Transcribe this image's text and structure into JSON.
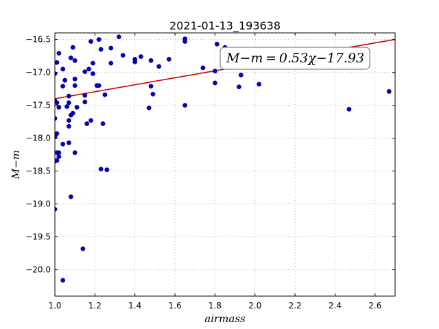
{
  "chart_data": {
    "type": "scatter",
    "title": "2021-01-13_193638",
    "xlabel": "airmass",
    "ylabel": "M−m",
    "xlim": [
      1.0,
      2.7
    ],
    "ylim": [
      -20.4,
      -16.4
    ],
    "y_inverted": true,
    "grid": true,
    "x_ticks": [
      "1.0",
      "1.2",
      "1.4",
      "1.6",
      "1.8",
      "2.0",
      "2.2",
      "2.4",
      "2.6"
    ],
    "x_tick_values": [
      1.0,
      1.2,
      1.4,
      1.6,
      1.8,
      2.0,
      2.2,
      2.4,
      2.6
    ],
    "y_ticks": [
      "−16.5",
      "−17.0",
      "−17.5",
      "−18.0",
      "−18.5",
      "−19.0",
      "−19.5",
      "−20.0"
    ],
    "y_tick_values": [
      -16.5,
      -17.0,
      -17.5,
      -18.0,
      -18.5,
      -19.0,
      -19.5,
      -20.0
    ],
    "annotation": "M−m = 0.53χ−17.93",
    "marker_color": "#0000cc",
    "fit_color": "#cc0000",
    "fit": {
      "slope": 0.53,
      "intercept": -17.93
    },
    "points": [
      [
        1.0,
        -17.02
      ],
      [
        1.0,
        -17.43
      ],
      [
        1.0,
        -17.7
      ],
      [
        1.0,
        -17.98
      ],
      [
        1.0,
        -18.35
      ],
      [
        1.0,
        -19.08
      ],
      [
        1.01,
        -16.85
      ],
      [
        1.01,
        -17.46
      ],
      [
        1.01,
        -17.93
      ],
      [
        1.01,
        -18.22
      ],
      [
        1.01,
        -18.34
      ],
      [
        1.02,
        -16.71
      ],
      [
        1.02,
        -17.53
      ],
      [
        1.02,
        -18.22
      ],
      [
        1.02,
        -18.28
      ],
      [
        1.04,
        -16.95
      ],
      [
        1.04,
        -17.21
      ],
      [
        1.04,
        -18.09
      ],
      [
        1.04,
        -20.16
      ],
      [
        1.05,
        -17.12
      ],
      [
        1.06,
        -17.52
      ],
      [
        1.07,
        -17.36
      ],
      [
        1.07,
        -17.46
      ],
      [
        1.07,
        -17.73
      ],
      [
        1.07,
        -17.82
      ],
      [
        1.07,
        -18.07
      ],
      [
        1.08,
        -16.78
      ],
      [
        1.08,
        -17.65
      ],
      [
        1.08,
        -18.89
      ],
      [
        1.09,
        -16.62
      ],
      [
        1.09,
        -17.62
      ],
      [
        1.1,
        -16.82
      ],
      [
        1.1,
        -17.1
      ],
      [
        1.1,
        -17.2
      ],
      [
        1.1,
        -18.22
      ],
      [
        1.11,
        -17.53
      ],
      [
        1.14,
        -19.68
      ],
      [
        1.15,
        -17.35
      ],
      [
        1.15,
        -17.45
      ],
      [
        1.15,
        -16.99
      ],
      [
        1.16,
        -17.78
      ],
      [
        1.17,
        -16.95
      ],
      [
        1.18,
        -16.53
      ],
      [
        1.18,
        -17.73
      ],
      [
        1.19,
        -17.02
      ],
      [
        1.19,
        -16.86
      ],
      [
        1.21,
        -17.2
      ],
      [
        1.22,
        -16.5
      ],
      [
        1.22,
        -17.2
      ],
      [
        1.23,
        -16.65
      ],
      [
        1.23,
        -18.47
      ],
      [
        1.24,
        -17.78
      ],
      [
        1.25,
        -17.34
      ],
      [
        1.26,
        -18.48
      ],
      [
        1.28,
        -16.63
      ],
      [
        1.28,
        -16.86
      ],
      [
        1.32,
        -16.46
      ],
      [
        1.34,
        -16.74
      ],
      [
        1.4,
        -16.8
      ],
      [
        1.4,
        -16.84
      ],
      [
        1.43,
        -16.76
      ],
      [
        1.47,
        -17.54
      ],
      [
        1.48,
        -16.82
      ],
      [
        1.48,
        -17.21
      ],
      [
        1.49,
        -17.33
      ],
      [
        1.52,
        -16.91
      ],
      [
        1.57,
        -16.8
      ],
      [
        1.65,
        -17.5
      ],
      [
        1.65,
        -16.53
      ],
      [
        1.65,
        -16.49
      ],
      [
        1.74,
        -16.93
      ],
      [
        1.8,
        -17.16
      ],
      [
        1.8,
        -16.98
      ],
      [
        1.81,
        -16.57
      ],
      [
        1.85,
        -16.62
      ],
      [
        1.92,
        -17.22
      ],
      [
        1.93,
        -17.04
      ],
      [
        2.02,
        -17.18
      ],
      [
        2.47,
        -17.56
      ],
      [
        2.67,
        -17.29
      ]
    ]
  }
}
